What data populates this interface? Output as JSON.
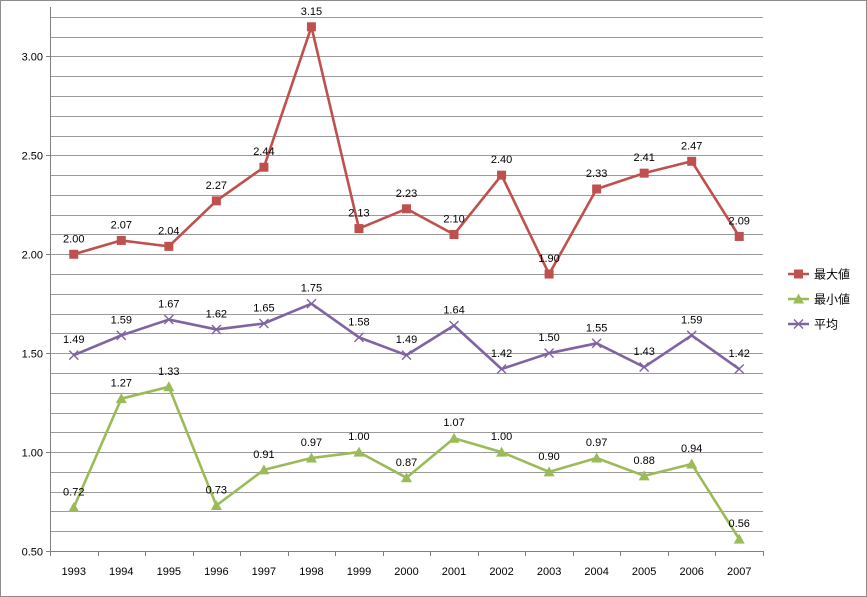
{
  "chart_data": {
    "type": "line",
    "title": "",
    "xlabel": "",
    "ylabel": "",
    "categories": [
      "1993",
      "1994",
      "1995",
      "1996",
      "1997",
      "1998",
      "1999",
      "2000",
      "2001",
      "2002",
      "2003",
      "2004",
      "2005",
      "2006",
      "2007"
    ],
    "ylim": [
      0.5,
      3.25
    ],
    "y_ticks": [
      0.5,
      1.0,
      1.5,
      2.0,
      2.5,
      3.0
    ],
    "y_tick_labels": [
      "0.50",
      "1.00",
      "1.50",
      "2.00",
      "2.50",
      "3.00"
    ],
    "minor_gridline_step": 0.1,
    "grid": true,
    "legend_position": "right",
    "series": [
      {
        "name": "最大値",
        "color": "#c0504d",
        "marker": "square",
        "values": [
          2.0,
          2.07,
          2.04,
          2.27,
          2.44,
          3.15,
          2.13,
          2.23,
          2.1,
          2.4,
          1.9,
          2.33,
          2.41,
          2.47,
          2.09
        ],
        "labels": [
          "2.00",
          "2.07",
          "2.04",
          "2.27",
          "2.44",
          "3.15",
          "2.13",
          "2.23",
          "2.10",
          "2.40",
          "1.90",
          "2.33",
          "2.41",
          "2.47",
          "2.09"
        ]
      },
      {
        "name": "最小値",
        "color": "#9bbb59",
        "marker": "triangle",
        "values": [
          0.72,
          1.27,
          1.33,
          0.73,
          0.91,
          0.97,
          1.0,
          0.87,
          1.07,
          1.0,
          0.9,
          0.97,
          0.88,
          0.94,
          0.56
        ],
        "labels": [
          "0.72",
          "1.27",
          "1.33",
          "0.73",
          "0.91",
          "0.97",
          "1.00",
          "0.87",
          "1.07",
          "1.00",
          "0.90",
          "0.97",
          "0.88",
          "0.94",
          "0.56"
        ]
      },
      {
        "name": "平均",
        "color": "#8064a2",
        "marker": "x",
        "values": [
          1.49,
          1.59,
          1.67,
          1.62,
          1.65,
          1.75,
          1.58,
          1.49,
          1.64,
          1.42,
          1.5,
          1.55,
          1.43,
          1.59,
          1.42
        ],
        "labels": [
          "1.49",
          "1.59",
          "1.67",
          "1.62",
          "1.65",
          "1.75",
          "1.58",
          "1.49",
          "1.64",
          "1.42",
          "1.50",
          "1.55",
          "1.43",
          "1.59",
          "1.42"
        ]
      }
    ]
  }
}
